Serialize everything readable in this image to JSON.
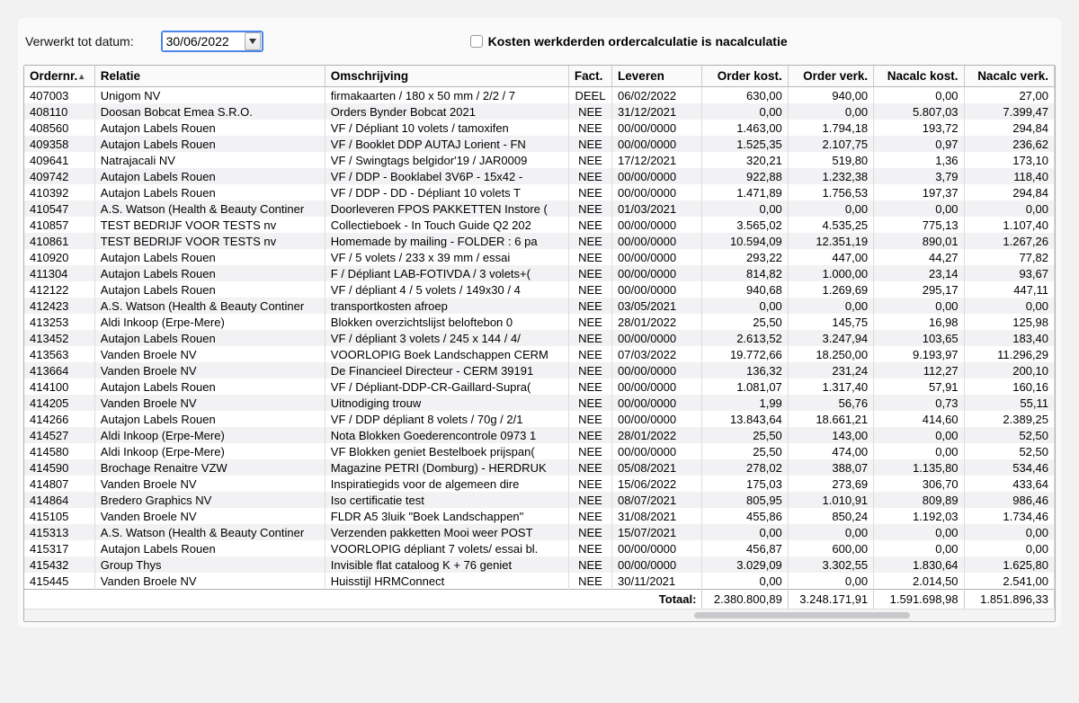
{
  "header": {
    "processedToLabel": "Verwerkt tot datum:",
    "dateValue": "30/06/2022",
    "checkboxLabel": "Kosten werkderden ordercalculatie is nacalculatie",
    "checkboxChecked": false
  },
  "columns": {
    "ordernr": "Ordernr.",
    "relatie": "Relatie",
    "omschrijving": "Omschrijving",
    "fact": "Fact.",
    "leveren": "Leveren",
    "orderkost": "Order kost.",
    "orderverk": "Order verk.",
    "nacalckost": "Nacalc kost.",
    "nacalcverk": "Nacalc verk."
  },
  "totals": {
    "label": "Totaal:",
    "orderkost": "2.380.800,89",
    "orderverk": "3.248.171,91",
    "nacalckost": "1.591.698,98",
    "nacalcverk": "1.851.896,33"
  },
  "rows": [
    {
      "ordernr": "407003",
      "relatie": "Unigom NV",
      "omschrijving": "firmakaarten / 180 x 50 mm / 2/2 / 7",
      "fact": "DEEL",
      "leveren": "06/02/2022",
      "ok": "630,00",
      "ov": "940,00",
      "nk": "0,00",
      "nv": "27,00"
    },
    {
      "ordernr": "408110",
      "relatie": "Doosan Bobcat Emea S.R.O.",
      "omschrijving": "Orders Bynder Bobcat 2021",
      "fact": "NEE",
      "leveren": "31/12/2021",
      "ok": "0,00",
      "ov": "0,00",
      "nk": "5.807,03",
      "nv": "7.399,47"
    },
    {
      "ordernr": "408560",
      "relatie": "Autajon Labels Rouen",
      "omschrijving": "VF / Dépliant 10 volets / tamoxifen",
      "fact": "NEE",
      "leveren": "00/00/0000",
      "ok": "1.463,00",
      "ov": "1.794,18",
      "nk": "193,72",
      "nv": "294,84"
    },
    {
      "ordernr": "409358",
      "relatie": "Autajon Labels Rouen",
      "omschrijving": "VF / Booklet DDP AUTAJ Lorient - FN",
      "fact": "NEE",
      "leveren": "00/00/0000",
      "ok": "1.525,35",
      "ov": "2.107,75",
      "nk": "0,97",
      "nv": "236,62"
    },
    {
      "ordernr": "409641",
      "relatie": "Natrajacali NV",
      "omschrijving": "VF / Swingtags belgidor'19 /  JAR0009",
      "fact": "NEE",
      "leveren": "17/12/2021",
      "ok": "320,21",
      "ov": "519,80",
      "nk": "1,36",
      "nv": "173,10"
    },
    {
      "ordernr": "409742",
      "relatie": "Autajon Labels Rouen",
      "omschrijving": "VF / DDP - Booklabel 3V6P - 15x42 -",
      "fact": "NEE",
      "leveren": "00/00/0000",
      "ok": "922,88",
      "ov": "1.232,38",
      "nk": "3,79",
      "nv": "118,40"
    },
    {
      "ordernr": "410392",
      "relatie": "Autajon Labels Rouen",
      "omschrijving": "VF / DDP - DD - Dépliant 10 volets T",
      "fact": "NEE",
      "leveren": "00/00/0000",
      "ok": "1.471,89",
      "ov": "1.756,53",
      "nk": "197,37",
      "nv": "294,84"
    },
    {
      "ordernr": "410547",
      "relatie": "A.S. Watson (Health & Beauty Continer",
      "omschrijving": "Doorleveren FPOS PAKKETTEN Instore (",
      "fact": "NEE",
      "leveren": "01/03/2021",
      "ok": "0,00",
      "ov": "0,00",
      "nk": "0,00",
      "nv": "0,00"
    },
    {
      "ordernr": "410857",
      "relatie": "TEST BEDRIJF VOOR TESTS nv",
      "omschrijving": "Collectieboek - In Touch Guide Q2 202",
      "fact": "NEE",
      "leveren": "00/00/0000",
      "ok": "3.565,02",
      "ov": "4.535,25",
      "nk": "775,13",
      "nv": "1.107,40"
    },
    {
      "ordernr": "410861",
      "relatie": "TEST BEDRIJF VOOR TESTS nv",
      "omschrijving": "Homemade by mailing - FOLDER : 6 pa",
      "fact": "NEE",
      "leveren": "00/00/0000",
      "ok": "10.594,09",
      "ov": "12.351,19",
      "nk": "890,01",
      "nv": "1.267,26"
    },
    {
      "ordernr": "410920",
      "relatie": "Autajon Labels Rouen",
      "omschrijving": "VF / 5 volets / 233 x 39 mm / essai",
      "fact": "NEE",
      "leveren": "00/00/0000",
      "ok": "293,22",
      "ov": "447,00",
      "nk": "44,27",
      "nv": "77,82"
    },
    {
      "ordernr": "411304",
      "relatie": "Autajon Labels Rouen",
      "omschrijving": "F / Dépliant LAB-FOTIVDA / 3 volets+(",
      "fact": "NEE",
      "leveren": "00/00/0000",
      "ok": "814,82",
      "ov": "1.000,00",
      "nk": "23,14",
      "nv": "93,67"
    },
    {
      "ordernr": "412122",
      "relatie": "Autajon Labels Rouen",
      "omschrijving": "VF / dépliant 4 / 5 volets / 149x30 / 4",
      "fact": "NEE",
      "leveren": "00/00/0000",
      "ok": "940,68",
      "ov": "1.269,69",
      "nk": "295,17",
      "nv": "447,11"
    },
    {
      "ordernr": "412423",
      "relatie": "A.S. Watson (Health & Beauty Continer",
      "omschrijving": "transportkosten afroep",
      "fact": "NEE",
      "leveren": "03/05/2021",
      "ok": "0,00",
      "ov": "0,00",
      "nk": "0,00",
      "nv": "0,00"
    },
    {
      "ordernr": "413253",
      "relatie": "Aldi Inkoop (Erpe-Mere)",
      "omschrijving": "Blokken overzichtslijst beloftebon 0",
      "fact": "NEE",
      "leveren": "28/01/2022",
      "ok": "25,50",
      "ov": "145,75",
      "nk": "16,98",
      "nv": "125,98"
    },
    {
      "ordernr": "413452",
      "relatie": "Autajon Labels Rouen",
      "omschrijving": "VF / dépliant 3 volets / 245 x 144 / 4/",
      "fact": "NEE",
      "leveren": "00/00/0000",
      "ok": "2.613,52",
      "ov": "3.247,94",
      "nk": "103,65",
      "nv": "183,40"
    },
    {
      "ordernr": "413563",
      "relatie": "Vanden Broele NV",
      "omschrijving": "VOORLOPIG Boek Landschappen CERM",
      "fact": "NEE",
      "leveren": "07/03/2022",
      "ok": "19.772,66",
      "ov": "18.250,00",
      "nk": "9.193,97",
      "nv": "11.296,29"
    },
    {
      "ordernr": "413664",
      "relatie": "Vanden Broele NV",
      "omschrijving": "De Financieel Directeur - CERM 39191",
      "fact": "NEE",
      "leveren": "00/00/0000",
      "ok": "136,32",
      "ov": "231,24",
      "nk": "112,27",
      "nv": "200,10"
    },
    {
      "ordernr": "414100",
      "relatie": "Autajon Labels Rouen",
      "omschrijving": "VF / Dépliant-DDP-CR-Gaillard-Supra(",
      "fact": "NEE",
      "leveren": "00/00/0000",
      "ok": "1.081,07",
      "ov": "1.317,40",
      "nk": "57,91",
      "nv": "160,16"
    },
    {
      "ordernr": "414205",
      "relatie": "Vanden Broele NV",
      "omschrijving": "Uitnodiging trouw",
      "fact": "NEE",
      "leveren": "00/00/0000",
      "ok": "1,99",
      "ov": "56,76",
      "nk": "0,73",
      "nv": "55,11"
    },
    {
      "ordernr": "414266",
      "relatie": "Autajon Labels Rouen",
      "omschrijving": "VF / DDP dépliant 8 volets /  70g / 2/1",
      "fact": "NEE",
      "leveren": "00/00/0000",
      "ok": "13.843,64",
      "ov": "18.661,21",
      "nk": "414,60",
      "nv": "2.389,25"
    },
    {
      "ordernr": "414527",
      "relatie": "Aldi Inkoop (Erpe-Mere)",
      "omschrijving": "Nota Blokken Goederencontrole 0973 1",
      "fact": "NEE",
      "leveren": "28/01/2022",
      "ok": "25,50",
      "ov": "143,00",
      "nk": "0,00",
      "nv": "52,50"
    },
    {
      "ordernr": "414580",
      "relatie": "Aldi Inkoop (Erpe-Mere)",
      "omschrijving": "VF Blokken geniet Bestelboek prijspan(",
      "fact": "NEE",
      "leveren": "00/00/0000",
      "ok": "25,50",
      "ov": "474,00",
      "nk": "0,00",
      "nv": "52,50"
    },
    {
      "ordernr": "414590",
      "relatie": "Brochage Renaitre VZW",
      "omschrijving": "Magazine PETRI (Domburg) - HERDRUK",
      "fact": "NEE",
      "leveren": "05/08/2021",
      "ok": "278,02",
      "ov": "388,07",
      "nk": "1.135,80",
      "nv": "534,46"
    },
    {
      "ordernr": "414807",
      "relatie": "Vanden Broele NV",
      "omschrijving": "Inspiratiegids voor de algemeen dire",
      "fact": "NEE",
      "leveren": "15/06/2022",
      "ok": "175,03",
      "ov": "273,69",
      "nk": "306,70",
      "nv": "433,64"
    },
    {
      "ordernr": "414864",
      "relatie": "Bredero Graphics NV",
      "omschrijving": "Iso certificatie test",
      "fact": "NEE",
      "leveren": "08/07/2021",
      "ok": "805,95",
      "ov": "1.010,91",
      "nk": "809,89",
      "nv": "986,46"
    },
    {
      "ordernr": "415105",
      "relatie": "Vanden Broele NV",
      "omschrijving": "FLDR A5 3luik \"Boek Landschappen\"",
      "fact": "NEE",
      "leveren": "31/08/2021",
      "ok": "455,86",
      "ov": "850,24",
      "nk": "1.192,03",
      "nv": "1.734,46"
    },
    {
      "ordernr": "415313",
      "relatie": "A.S. Watson (Health & Beauty Continer",
      "omschrijving": "Verzenden pakketten Mooi weer POST",
      "fact": "NEE",
      "leveren": "15/07/2021",
      "ok": "0,00",
      "ov": "0,00",
      "nk": "0,00",
      "nv": "0,00"
    },
    {
      "ordernr": "415317",
      "relatie": "Autajon Labels Rouen",
      "omschrijving": "VOORLOPIG dépliant 7 volets/ essai bl.",
      "fact": "NEE",
      "leveren": "00/00/0000",
      "ok": "456,87",
      "ov": "600,00",
      "nk": "0,00",
      "nv": "0,00"
    },
    {
      "ordernr": "415432",
      "relatie": "Group Thys",
      "omschrijving": "Invisible flat cataloog  K + 76   geniet",
      "fact": "NEE",
      "leveren": "00/00/0000",
      "ok": "3.029,09",
      "ov": "3.302,55",
      "nk": "1.830,64",
      "nv": "1.625,80"
    },
    {
      "ordernr": "415445",
      "relatie": "Vanden Broele NV",
      "omschrijving": "Huisstijl HRMConnect",
      "fact": "NEE",
      "leveren": "30/11/2021",
      "ok": "0,00",
      "ov": "0,00",
      "nk": "2.014,50",
      "nv": "2.541,00"
    }
  ]
}
